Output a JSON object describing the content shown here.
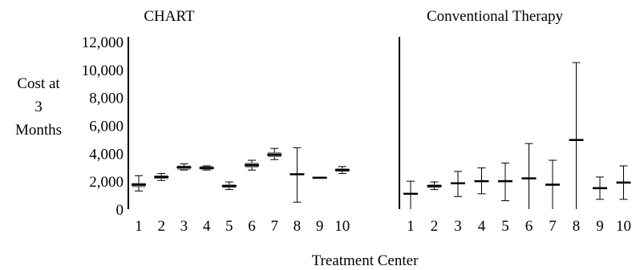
{
  "figure": {
    "ylabel_lines": [
      "Cost at",
      "3",
      "Months"
    ],
    "xlabel": "Treatment Center"
  },
  "chart_data": [
    {
      "type": "box",
      "title": "CHART",
      "categories": [
        "1",
        "2",
        "3",
        "4",
        "5",
        "6",
        "7",
        "8",
        "9",
        "10"
      ],
      "ylim": [
        0,
        12000
      ],
      "yticks": [
        "0",
        "2,000",
        "4,000",
        "6,000",
        "8,000",
        "10,000",
        "12,000"
      ],
      "ytick_values": [
        0,
        2000,
        4000,
        6000,
        8000,
        10000,
        12000
      ],
      "series": [
        {
          "x": "1",
          "median": 1750,
          "q1": 1600,
          "q3": 1850,
          "low": 1300,
          "high": 2400
        },
        {
          "x": "2",
          "median": 2300,
          "q1": 2200,
          "q3": 2400,
          "low": 2050,
          "high": 2550
        },
        {
          "x": "3",
          "median": 3000,
          "q1": 2850,
          "q3": 3100,
          "low": 2800,
          "high": 3250
        },
        {
          "x": "4",
          "median": 2950,
          "q1": 2850,
          "q3": 3050,
          "low": 2800,
          "high": 3100
        },
        {
          "x": "5",
          "median": 1650,
          "q1": 1550,
          "q3": 1750,
          "low": 1400,
          "high": 1950
        },
        {
          "x": "6",
          "median": 3150,
          "q1": 3000,
          "q3": 3300,
          "low": 2800,
          "high": 3500
        },
        {
          "x": "7",
          "median": 3900,
          "q1": 3750,
          "q3": 4050,
          "low": 3550,
          "high": 4350
        },
        {
          "x": "8",
          "median": 2500,
          "q1": 2500,
          "q3": 2500,
          "low": 500,
          "high": 4400
        },
        {
          "x": "9",
          "median": 2250,
          "q1": 2200,
          "q3": 2300,
          "low": 2200,
          "high": 2300
        },
        {
          "x": "10",
          "median": 2800,
          "q1": 2700,
          "q3": 2900,
          "low": 2550,
          "high": 3050
        }
      ]
    },
    {
      "type": "box",
      "title": "Conventional Therapy",
      "categories": [
        "1",
        "2",
        "3",
        "4",
        "5",
        "6",
        "7",
        "8",
        "9",
        "10"
      ],
      "ylim": [
        0,
        12000
      ],
      "series": [
        {
          "x": "1",
          "median": 1100,
          "q1": 1100,
          "q3": 1100,
          "low": 0,
          "high": 2000
        },
        {
          "x": "2",
          "median": 1650,
          "q1": 1550,
          "q3": 1750,
          "low": 1400,
          "high": 1950
        },
        {
          "x": "3",
          "median": 1850,
          "q1": 1850,
          "q3": 1850,
          "low": 900,
          "high": 2700
        },
        {
          "x": "4",
          "median": 2000,
          "q1": 1950,
          "q3": 2050,
          "low": 1100,
          "high": 2950
        },
        {
          "x": "5",
          "median": 2000,
          "q1": 1950,
          "q3": 2050,
          "low": 600,
          "high": 3300
        },
        {
          "x": "6",
          "median": 2200,
          "q1": 2150,
          "q3": 2250,
          "low": 0,
          "high": 4700
        },
        {
          "x": "7",
          "median": 1750,
          "q1": 1700,
          "q3": 1800,
          "low": 0,
          "high": 3500
        },
        {
          "x": "8",
          "median": 4950,
          "q1": 4950,
          "q3": 4950,
          "low": 0,
          "high": 10500
        },
        {
          "x": "9",
          "median": 1500,
          "q1": 1450,
          "q3": 1550,
          "low": 700,
          "high": 2300
        },
        {
          "x": "10",
          "median": 1900,
          "q1": 1850,
          "q3": 1950,
          "low": 700,
          "high": 3100
        }
      ]
    }
  ]
}
